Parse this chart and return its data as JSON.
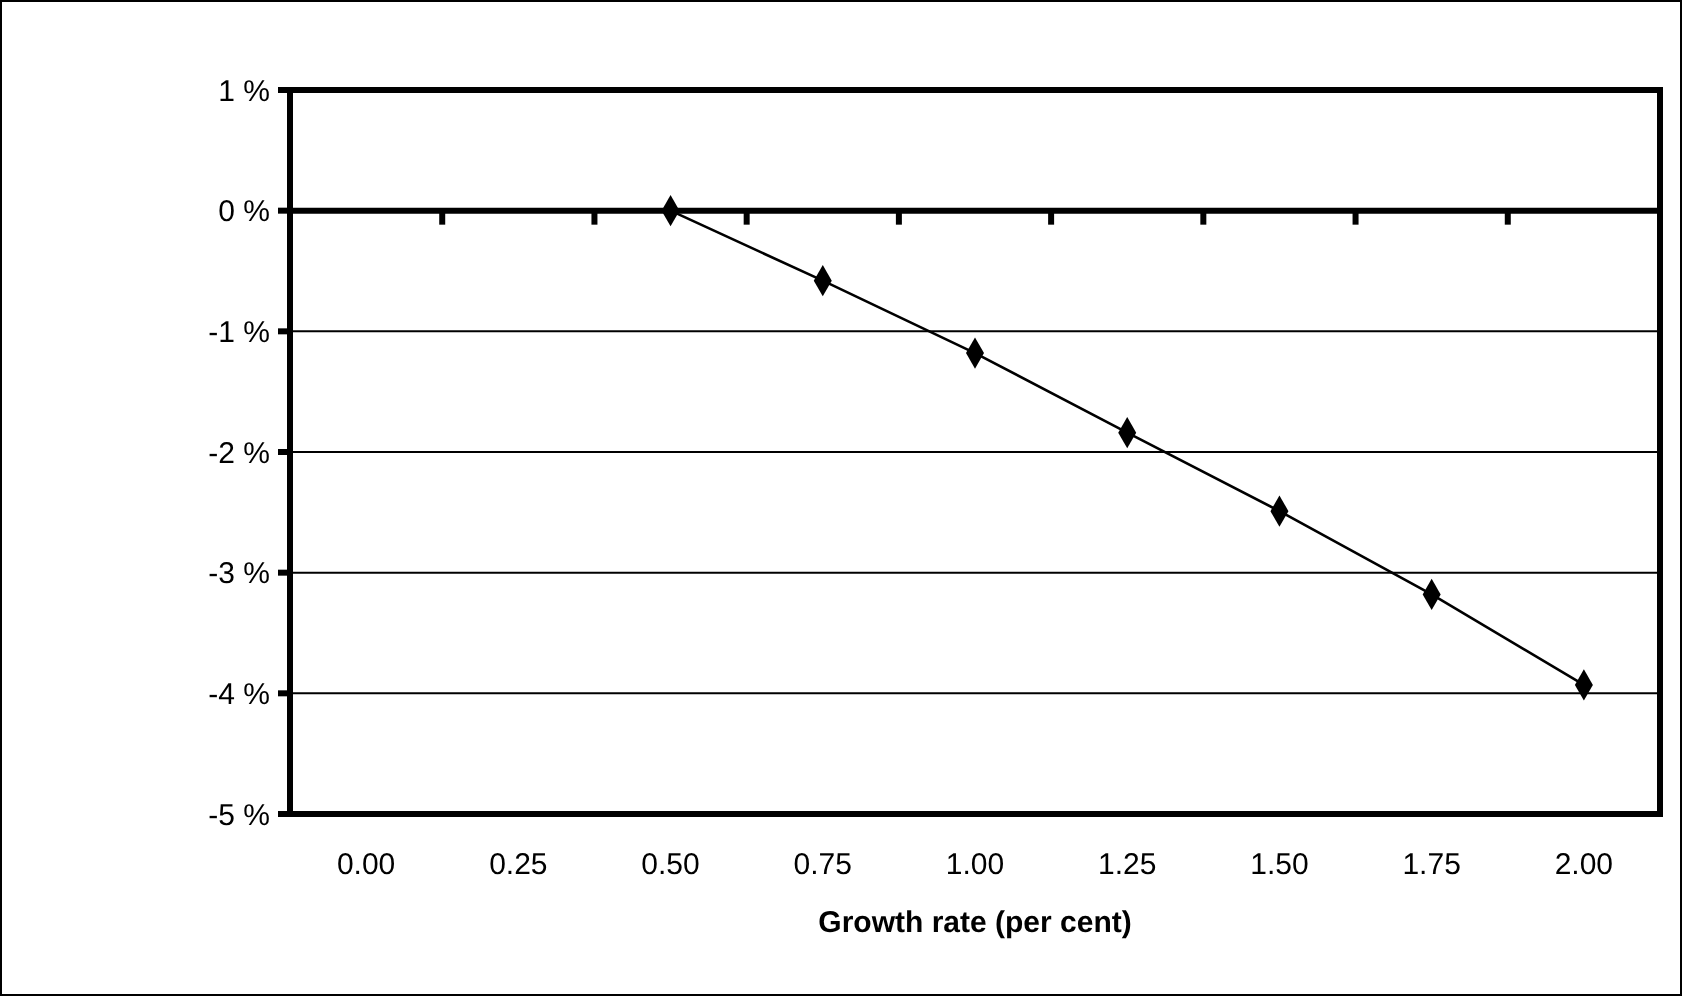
{
  "chart_data": {
    "type": "line",
    "xlabel": "Growth rate (per cent)",
    "categories": [
      "0.00",
      "0.25",
      "0.50",
      "0.75",
      "1.00",
      "1.25",
      "1.50",
      "1.75",
      "2.00"
    ],
    "series": [
      {
        "color": "#000000",
        "values": [
          null,
          null,
          0,
          -0.58,
          -1.18,
          -1.84,
          -2.49,
          -3.18,
          -3.93
        ]
      }
    ],
    "ylim": [
      -5,
      1
    ],
    "yticks": [
      {
        "value": -5,
        "label": "-5 %"
      },
      {
        "value": -4,
        "label": "-4 %"
      },
      {
        "value": -3,
        "label": "-3 %"
      },
      {
        "value": -2,
        "label": "-2 %"
      },
      {
        "value": -1,
        "label": "-1 %"
      },
      {
        "value": 0,
        "label": "0 %"
      },
      {
        "value": 1,
        "label": "1 %"
      }
    ],
    "grid": "y",
    "marker": "diamond",
    "line_style": "solid"
  }
}
